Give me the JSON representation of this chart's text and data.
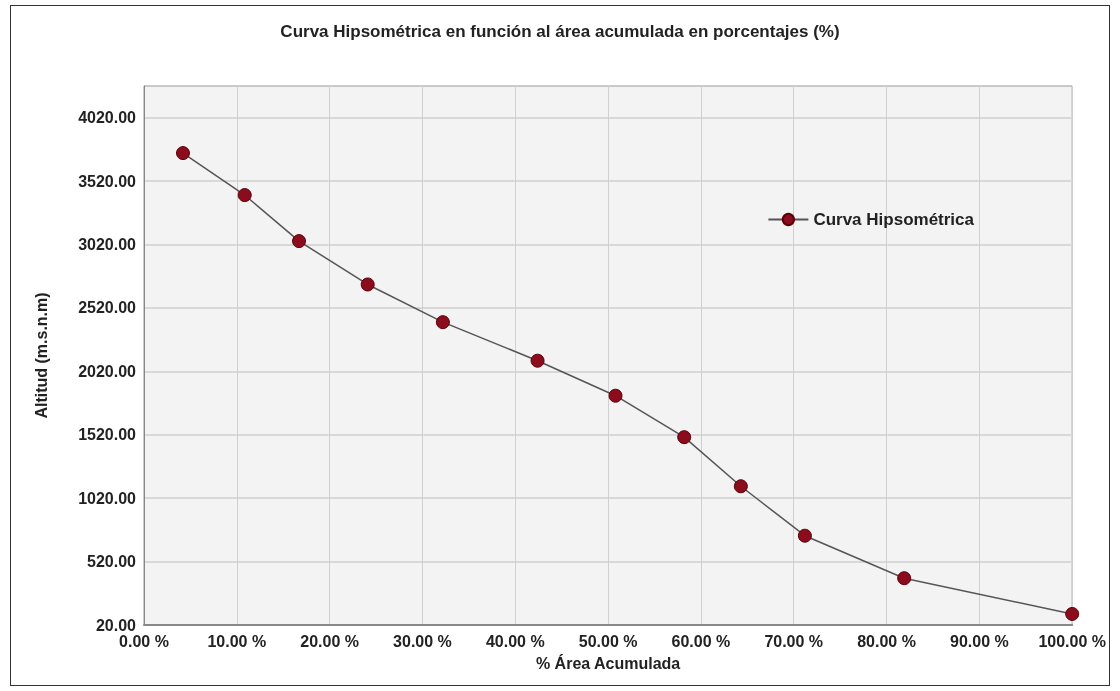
{
  "chart_data": {
    "type": "line",
    "title": "Curva Hipsométrica en función al área acumulada en porcentajes (%)",
    "xlabel": "% Área Acumulada",
    "ylabel": "Altitud (m.s.n.m)",
    "x": [
      4.2,
      10.85,
      16.7,
      24.1,
      32.2,
      42.4,
      50.8,
      58.2,
      64.3,
      71.2,
      81.9,
      100
    ],
    "series": [
      {
        "name": "Curva Hipsométrica",
        "color": "#8b0c1c",
        "values": [
          3741,
          3410,
          3047,
          2705,
          2408,
          2104,
          1828,
          1501,
          1114,
          724,
          389,
          107
        ]
      }
    ],
    "xlim": [
      0,
      100
    ],
    "xticks": [
      {
        "value": 0,
        "label": "0.00 %"
      },
      {
        "value": 10,
        "label": "10.00 %"
      },
      {
        "value": 20,
        "label": "20.00 %"
      },
      {
        "value": 30,
        "label": "30.00 %"
      },
      {
        "value": 40,
        "label": "40.00 %"
      },
      {
        "value": 50,
        "label": "50.00 %"
      },
      {
        "value": 60,
        "label": "60.00 %"
      },
      {
        "value": 70,
        "label": "70.00 %"
      },
      {
        "value": 80,
        "label": "80.00 %"
      },
      {
        "value": 90,
        "label": "90.00 %"
      },
      {
        "value": 100,
        "label": "100.00 %"
      }
    ],
    "ylim": [
      20,
      4270
    ],
    "yticks": [
      {
        "value": 20,
        "label": "20.00"
      },
      {
        "value": 520,
        "label": "520.00"
      },
      {
        "value": 1020,
        "label": "1020.00"
      },
      {
        "value": 1520,
        "label": "1520.00"
      },
      {
        "value": 2020,
        "label": "2020.00"
      },
      {
        "value": 2520,
        "label": "2520.00"
      },
      {
        "value": 3020,
        "label": "3020.00"
      },
      {
        "value": 3520,
        "label": "3520.00"
      },
      {
        "value": 4020,
        "label": "4020.00"
      }
    ],
    "grid": true,
    "legend": "top right",
    "marker": "circle",
    "line_style": "solid"
  }
}
